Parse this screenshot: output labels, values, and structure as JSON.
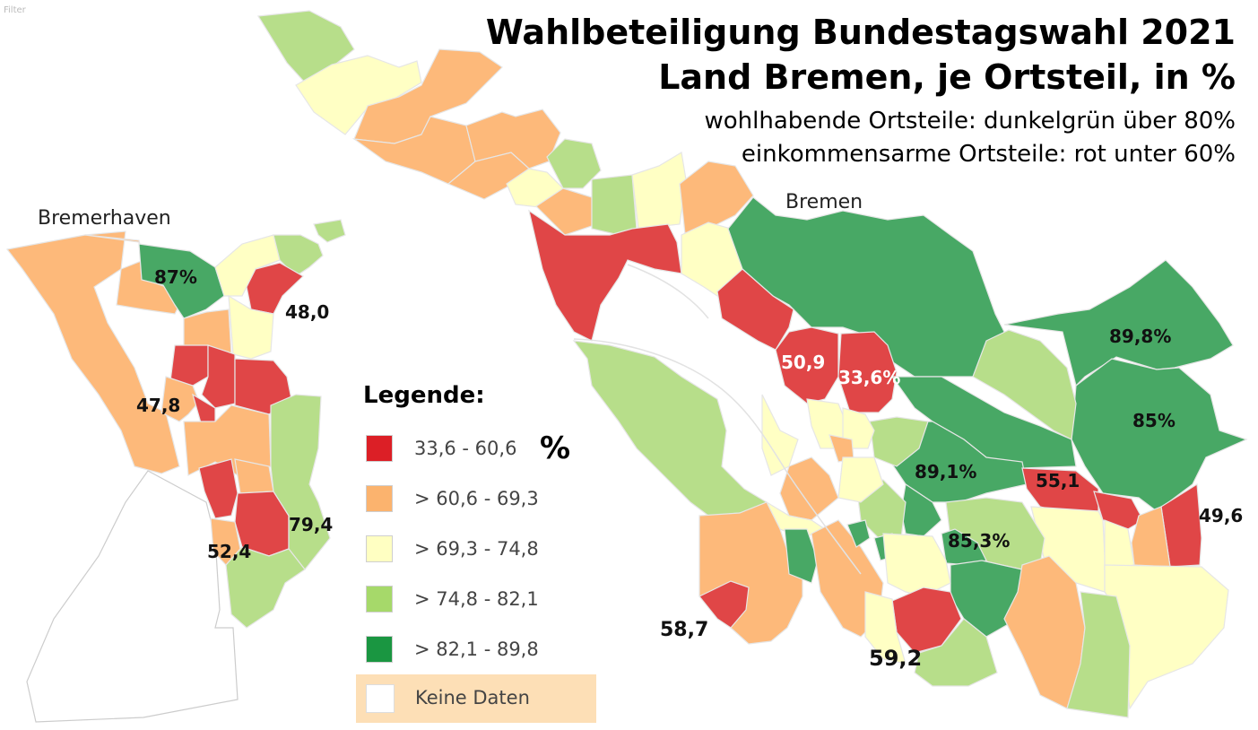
{
  "title_line1": "Wahlbeteiligung Bundestagswahl 2021",
  "title_line2": "Land Bremen, je Ortsteil, in %",
  "subtitle_line1": "wohlhabende Ortsteile: dunkelgrün über 80%",
  "subtitle_line2": "einkommensarme Ortsteile: rot unter 60%",
  "toolbar_label": "Filter",
  "cities": {
    "bremerhaven": "Bremerhaven",
    "bremen": "Bremen"
  },
  "legend": {
    "title": "Legende:",
    "unit": "%",
    "classes": [
      {
        "label": "33,6 - 60,6",
        "color": "#dc1f26"
      },
      {
        "label": "> 60,6 - 69,3",
        "color": "#fbb36e"
      },
      {
        "label": "> 69,3 - 74,8",
        "color": "#ffffc2"
      },
      {
        "label": "> 74,8 - 82,1",
        "color": "#a6d96a"
      },
      {
        "label": "> 82,1 - 89,8",
        "color": "#1a9641"
      }
    ],
    "no_data": {
      "label": "Keine Daten",
      "color": "#ffffff"
    }
  },
  "map_colors": {
    "red": "#e04647",
    "orange": "#fdb97a",
    "yellow": "#ffffc4",
    "lightgreen": "#b7de8a",
    "darkgreen": "#48a865",
    "nodata": "#ffffff",
    "border": "#e6e6e6"
  },
  "district_labels": {
    "bhv_87": "87%",
    "bhv_48_0": "48,0",
    "bhv_47_8": "47,8",
    "bhv_79_4": "79,4",
    "bhv_52_4": "52,4",
    "hb_50_9": "50,9",
    "hb_33_6": "33,6%",
    "hb_89_8": "89,8%",
    "hb_85": "85%",
    "hb_89_1": "89,1%",
    "hb_55_1": "55,1",
    "hb_49_6": "49,6",
    "hb_85_3": "85,3%",
    "hb_58_7": "58,7",
    "hb_59_2": "59,2"
  }
}
